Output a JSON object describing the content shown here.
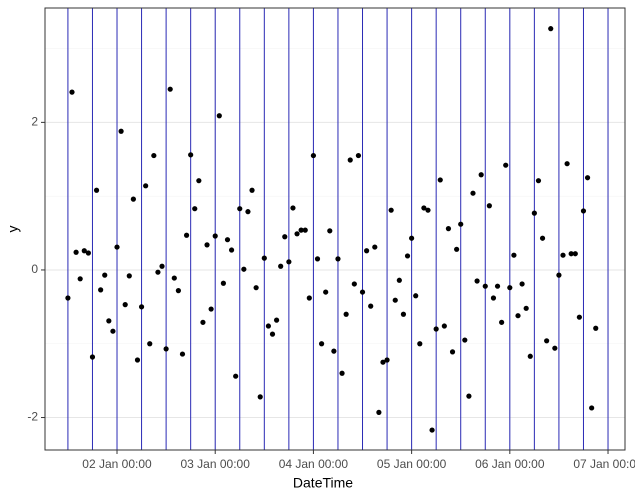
{
  "chart_data": {
    "type": "scatter",
    "xlabel": "DateTime",
    "ylabel": "y",
    "color": "#000000",
    "vline_color": "#2a2ab5",
    "grid": true,
    "x": [
      "01 Jan 12:00",
      "01 Jan 13:00",
      "01 Jan 14:00",
      "01 Jan 15:00",
      "01 Jan 16:00",
      "01 Jan 17:00",
      "01 Jan 18:00",
      "01 Jan 19:00",
      "01 Jan 20:00",
      "01 Jan 21:00",
      "01 Jan 22:00",
      "01 Jan 23:00",
      "02 Jan 00:00",
      "02 Jan 01:00",
      "02 Jan 02:00",
      "02 Jan 03:00",
      "02 Jan 04:00",
      "02 Jan 05:00",
      "02 Jan 06:00",
      "02 Jan 07:00",
      "02 Jan 08:00",
      "02 Jan 09:00",
      "02 Jan 10:00",
      "02 Jan 11:00",
      "02 Jan 12:00",
      "02 Jan 13:00",
      "02 Jan 14:00",
      "02 Jan 15:00",
      "02 Jan 16:00",
      "02 Jan 17:00",
      "02 Jan 18:00",
      "02 Jan 19:00",
      "02 Jan 20:00",
      "02 Jan 21:00",
      "02 Jan 22:00",
      "02 Jan 23:00",
      "03 Jan 00:00",
      "03 Jan 01:00",
      "03 Jan 02:00",
      "03 Jan 03:00",
      "03 Jan 04:00",
      "03 Jan 05:00",
      "03 Jan 06:00",
      "03 Jan 07:00",
      "03 Jan 08:00",
      "03 Jan 09:00",
      "03 Jan 10:00",
      "03 Jan 11:00",
      "03 Jan 12:00",
      "03 Jan 13:00",
      "03 Jan 14:00",
      "03 Jan 15:00",
      "03 Jan 16:00",
      "03 Jan 17:00",
      "03 Jan 18:00",
      "03 Jan 19:00",
      "03 Jan 20:00",
      "03 Jan 21:00",
      "03 Jan 22:00",
      "03 Jan 23:00",
      "04 Jan 00:00",
      "04 Jan 01:00",
      "04 Jan 02:00",
      "04 Jan 03:00",
      "04 Jan 04:00",
      "04 Jan 05:00",
      "04 Jan 06:00",
      "04 Jan 07:00",
      "04 Jan 08:00",
      "04 Jan 09:00",
      "04 Jan 10:00",
      "04 Jan 11:00",
      "04 Jan 12:00",
      "04 Jan 13:00",
      "04 Jan 14:00",
      "04 Jan 15:00",
      "04 Jan 16:00",
      "04 Jan 17:00",
      "04 Jan 18:00",
      "04 Jan 19:00",
      "04 Jan 20:00",
      "04 Jan 21:00",
      "04 Jan 22:00",
      "04 Jan 23:00",
      "05 Jan 00:00",
      "05 Jan 01:00",
      "05 Jan 02:00",
      "05 Jan 03:00",
      "05 Jan 04:00",
      "05 Jan 05:00",
      "05 Jan 06:00",
      "05 Jan 07:00",
      "05 Jan 08:00",
      "05 Jan 09:00",
      "05 Jan 10:00",
      "05 Jan 11:00",
      "05 Jan 12:00",
      "05 Jan 13:00",
      "05 Jan 14:00",
      "05 Jan 15:00",
      "05 Jan 16:00",
      "05 Jan 17:00",
      "05 Jan 18:00",
      "05 Jan 19:00",
      "05 Jan 20:00",
      "05 Jan 21:00",
      "05 Jan 22:00",
      "05 Jan 23:00",
      "06 Jan 00:00",
      "06 Jan 01:00",
      "06 Jan 02:00",
      "06 Jan 03:00",
      "06 Jan 04:00",
      "06 Jan 05:00",
      "06 Jan 06:00",
      "06 Jan 07:00",
      "06 Jan 08:00",
      "06 Jan 09:00",
      "06 Jan 10:00",
      "06 Jan 11:00",
      "06 Jan 12:00",
      "06 Jan 13:00",
      "06 Jan 14:00",
      "06 Jan 15:00",
      "06 Jan 16:00",
      "06 Jan 17:00",
      "06 Jan 18:00",
      "06 Jan 19:00",
      "06 Jan 20:00",
      "06 Jan 21:00"
    ],
    "values": [
      -0.38,
      2.41,
      0.24,
      -0.12,
      0.26,
      0.23,
      -1.18,
      1.08,
      -0.27,
      -0.07,
      -0.69,
      -0.83,
      0.31,
      1.88,
      -0.47,
      -0.08,
      0.96,
      -1.22,
      -0.5,
      1.14,
      -1.0,
      1.55,
      -0.03,
      0.05,
      -1.07,
      2.45,
      -0.11,
      -0.28,
      -1.14,
      0.47,
      1.56,
      0.83,
      1.21,
      -0.71,
      0.34,
      -0.53,
      0.46,
      2.09,
      -0.18,
      0.41,
      0.27,
      -1.44,
      0.83,
      0.01,
      0.79,
      1.08,
      -0.24,
      -1.72,
      0.16,
      -0.76,
      -0.87,
      -0.68,
      0.05,
      0.45,
      0.11,
      0.84,
      0.49,
      0.54,
      0.54,
      -0.38,
      1.55,
      0.15,
      -1.0,
      -0.3,
      0.53,
      -1.1,
      0.15,
      -1.4,
      -0.6,
      1.49,
      -0.19,
      1.55,
      -0.3,
      0.26,
      -0.49,
      0.31,
      -1.93,
      -1.25,
      -1.22,
      0.81,
      -0.41,
      -0.14,
      -0.6,
      0.19,
      0.43,
      -0.35,
      -1.0,
      0.84,
      0.81,
      -2.17,
      -0.8,
      1.22,
      -0.76,
      0.56,
      -1.11,
      0.28,
      0.62,
      -0.95,
      -1.71,
      1.04,
      -0.15,
      1.29,
      -0.22,
      0.87,
      -0.38,
      -0.22,
      -0.71,
      1.42,
      -0.24,
      0.2,
      -0.62,
      -0.19,
      -0.52,
      -1.17,
      0.77,
      1.21,
      0.43,
      -0.96,
      3.27,
      -1.06,
      -0.07,
      0.2,
      1.44,
      0.22,
      0.22,
      -0.64,
      0.8,
      1.25,
      -1.87,
      -0.79
    ],
    "vlines": [
      "01 Jan 12:00",
      "01 Jan 18:00",
      "02 Jan 00:00",
      "02 Jan 06:00",
      "02 Jan 12:00",
      "02 Jan 18:00",
      "03 Jan 00:00",
      "03 Jan 06:00",
      "03 Jan 12:00",
      "03 Jan 18:00",
      "04 Jan 00:00",
      "04 Jan 06:00",
      "04 Jan 12:00",
      "04 Jan 18:00",
      "05 Jan 00:00",
      "05 Jan 06:00",
      "05 Jan 12:00",
      "05 Jan 18:00",
      "06 Jan 00:00",
      "06 Jan 06:00",
      "06 Jan 12:00",
      "06 Jan 18:00",
      "07 Jan 00:00"
    ],
    "xlim": [
      "01 Jan 06:24",
      "07 Jan 04:09"
    ],
    "xticks": [
      "02 Jan 00:00",
      "03 Jan 00:00",
      "04 Jan 00:00",
      "05 Jan 00:00",
      "06 Jan 00:00",
      "07 Jan 00:00"
    ],
    "ylim": [
      -2.44,
      3.55
    ],
    "yticks": [
      -2,
      0,
      2
    ]
  }
}
